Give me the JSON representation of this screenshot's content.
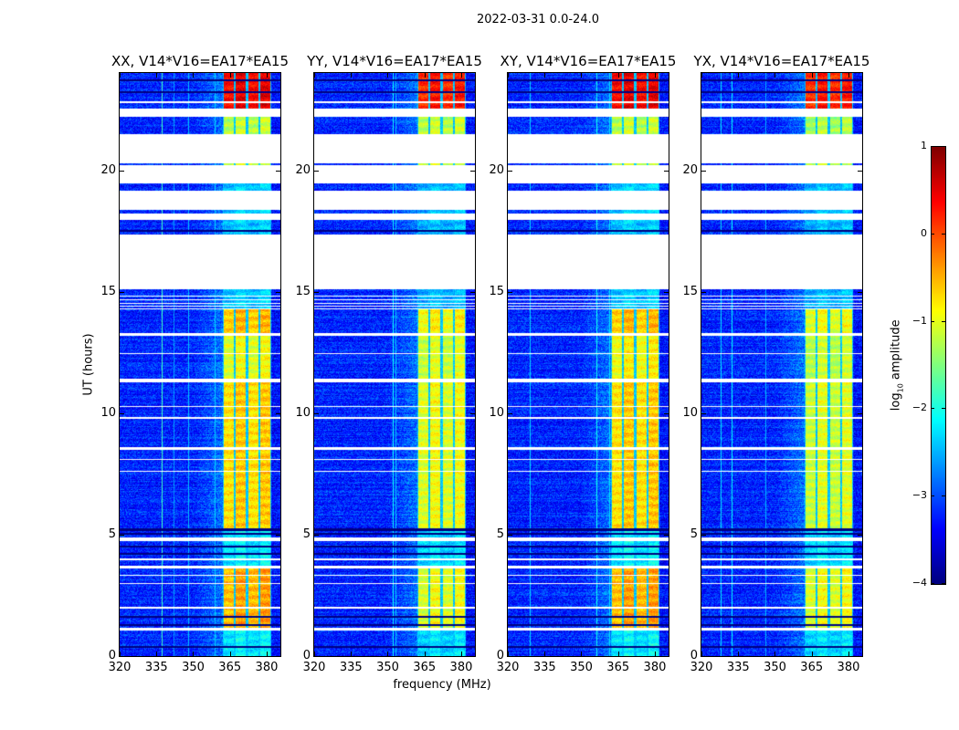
{
  "chart_data": {
    "type": "heatmap",
    "suptitle": "2022-03-31 0.0-24.0",
    "xlabel": "frequency (MHz)",
    "ylabel": "UT (hours)",
    "xlim": [
      320,
      385.6
    ],
    "ylim": [
      0,
      24
    ],
    "xticks": [
      320,
      335,
      350,
      365,
      380
    ],
    "xtick_labels": [
      "320",
      "335",
      "350",
      "365",
      "380"
    ],
    "yticks": [
      0,
      5,
      10,
      15,
      20
    ],
    "ytick_labels": [
      "0",
      "5",
      "10",
      "15",
      "20"
    ],
    "colormap": "jet",
    "colorbar": {
      "label_prefix": "log",
      "label_sub": "10",
      "label_suffix": " amplitude",
      "range": [
        -4,
        1
      ],
      "ticks": [
        1,
        0,
        -1,
        -2,
        -3,
        -4
      ],
      "tick_labels": [
        "1",
        "0",
        "−1",
        "−2",
        "−3",
        "−4"
      ]
    },
    "panels": [
      {
        "title": "XX, V14*V16=EA17*EA15"
      },
      {
        "title": "YY, V14*V16=EA17*EA15"
      },
      {
        "title": "XY, V14*V16=EA17*EA15"
      },
      {
        "title": "YX, V14*V16=EA17*EA15"
      }
    ],
    "background_level": -3.2,
    "rfi_band_mhz": [
      362,
      382
    ],
    "rfi_subband_edges_mhz": [
      362,
      367,
      372,
      377,
      382
    ],
    "rfi_segments": [
      {
        "hours": [
          0,
          1.1
        ],
        "levels": [
          -2.2,
          -2.3,
          -2.2,
          -2.3
        ]
      },
      {
        "hours": [
          1.1,
          3.6
        ],
        "levels": [
          -0.5,
          -1.0,
          -0.5,
          -1.0
        ]
      },
      {
        "hours": [
          3.6,
          5.2
        ],
        "levels": [
          -2.2,
          -2.3,
          -2.2,
          -2.3
        ]
      },
      {
        "hours": [
          5.2,
          11.3
        ],
        "levels": [
          -0.7,
          -1.0,
          -0.7,
          -1.1
        ]
      },
      {
        "hours": [
          11.3,
          13.2
        ],
        "levels": [
          -1.0,
          -1.1,
          -0.9,
          -1.2
        ]
      },
      {
        "hours": [
          13.2,
          14.3
        ],
        "levels": [
          -0.6,
          -0.9,
          -0.6,
          -1.0
        ]
      },
      {
        "hours": [
          14.3,
          19.5
        ],
        "levels": [
          -2.4,
          -2.5,
          -2.4,
          -2.5
        ]
      },
      {
        "hours": [
          19.5,
          22.5
        ],
        "levels": [
          -1.2,
          -1.2,
          -1.2,
          -1.3
        ]
      },
      {
        "hours": [
          22.5,
          24
        ],
        "levels": [
          0.4,
          0.2,
          0.4,
          0.2
        ]
      }
    ],
    "flagged_hours": [
      [
        22.18,
        22.52
      ],
      [
        22.75,
        22.85
      ],
      [
        20.3,
        21.5
      ],
      [
        19.45,
        20.2
      ],
      [
        18.35,
        19.15
      ],
      [
        17.95,
        18.2
      ],
      [
        15.1,
        17.35
      ],
      [
        14.81,
        14.85
      ],
      [
        14.66,
        14.7
      ],
      [
        14.51,
        14.55
      ],
      [
        14.39,
        14.43
      ],
      [
        14.28,
        14.32
      ],
      [
        13.2,
        13.3
      ],
      [
        12.44,
        12.48
      ],
      [
        11.26,
        11.4
      ],
      [
        10.26,
        10.3
      ],
      [
        9.76,
        9.83
      ],
      [
        8.5,
        8.6
      ],
      [
        8.08,
        8.12
      ],
      [
        7.58,
        7.62
      ],
      [
        4.75,
        4.9
      ],
      [
        3.96,
        4.0
      ],
      [
        3.6,
        3.7
      ],
      [
        3.32,
        3.36
      ],
      [
        2.98,
        3.02
      ],
      [
        1.95,
        2.02
      ],
      [
        1.05,
        1.15
      ]
    ],
    "dropout_hours": [
      23.7,
      23.22,
      18.0,
      17.5,
      5.2,
      5.03,
      4.5,
      4.2,
      1.6,
      1.28,
      0.38
    ]
  }
}
